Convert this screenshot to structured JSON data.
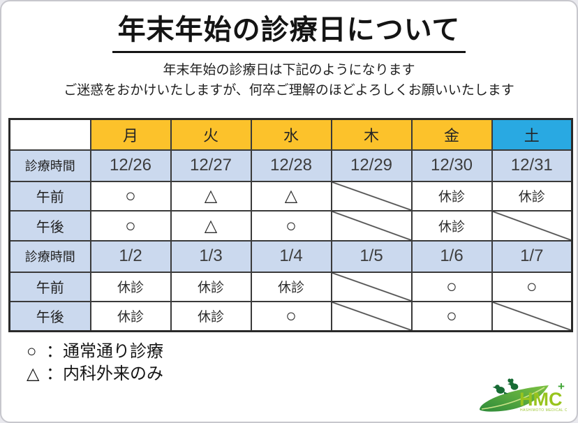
{
  "page": {
    "title": "年末年始の診療日について",
    "subtitle_line1": "年末年始の診療日は下記のようになります",
    "subtitle_line2": "ご迷惑をおかけいたしますが、何卒ご理解のほどよろしくお願いいたします"
  },
  "colors": {
    "weekday_header_orange": "#FCC22B",
    "saturday_header_blue": "#29A9E2",
    "label_row_blue": "#CBD9EE",
    "table_border": "#3a3a3a",
    "logo_green": "#98C41E",
    "logo_dark_green": "#1F7A38"
  },
  "table": {
    "corner_label": "",
    "day_headers": [
      {
        "label": "月",
        "type": "weekday"
      },
      {
        "label": "火",
        "type": "weekday"
      },
      {
        "label": "水",
        "type": "weekday"
      },
      {
        "label": "木",
        "type": "weekday"
      },
      {
        "label": "金",
        "type": "weekday"
      },
      {
        "label": "土",
        "type": "saturday"
      }
    ],
    "time_row_label": "診療時間",
    "am_label": "午前",
    "pm_label": "午後",
    "weeks": [
      {
        "dates": [
          "12/26",
          "12/27",
          "12/28",
          "12/29",
          "12/30",
          "12/31"
        ],
        "am": [
          {
            "type": "open",
            "value": "○"
          },
          {
            "type": "partial",
            "value": "△"
          },
          {
            "type": "partial",
            "value": "△"
          },
          {
            "type": "none",
            "value": ""
          },
          {
            "type": "closed",
            "value": "休診"
          },
          {
            "type": "closed",
            "value": "休診"
          }
        ],
        "pm": [
          {
            "type": "open",
            "value": "○"
          },
          {
            "type": "partial",
            "value": "△"
          },
          {
            "type": "open",
            "value": "○"
          },
          {
            "type": "none",
            "value": ""
          },
          {
            "type": "closed",
            "value": "休診"
          },
          {
            "type": "none",
            "value": ""
          }
        ]
      },
      {
        "dates": [
          "1/2",
          "1/3",
          "1/4",
          "1/5",
          "1/6",
          "1/7"
        ],
        "am": [
          {
            "type": "closed",
            "value": "休診"
          },
          {
            "type": "closed",
            "value": "休診"
          },
          {
            "type": "closed",
            "value": "休診"
          },
          {
            "type": "none",
            "value": ""
          },
          {
            "type": "open",
            "value": "○"
          },
          {
            "type": "open",
            "value": "○"
          }
        ],
        "pm": [
          {
            "type": "closed",
            "value": "休診"
          },
          {
            "type": "closed",
            "value": "休診"
          },
          {
            "type": "open",
            "value": "○"
          },
          {
            "type": "none",
            "value": ""
          },
          {
            "type": "open",
            "value": "○"
          },
          {
            "type": "none",
            "value": ""
          }
        ]
      }
    ]
  },
  "legend": [
    {
      "symbol": "○",
      "separator": "：",
      "text": "通常通り診療"
    },
    {
      "symbol": "△",
      "separator": "：",
      "text": "内科外来のみ"
    }
  ],
  "logo": {
    "name": "HMC",
    "plus": "+",
    "caption": "HASHIMOTO MEDICAL CLINIC"
  }
}
